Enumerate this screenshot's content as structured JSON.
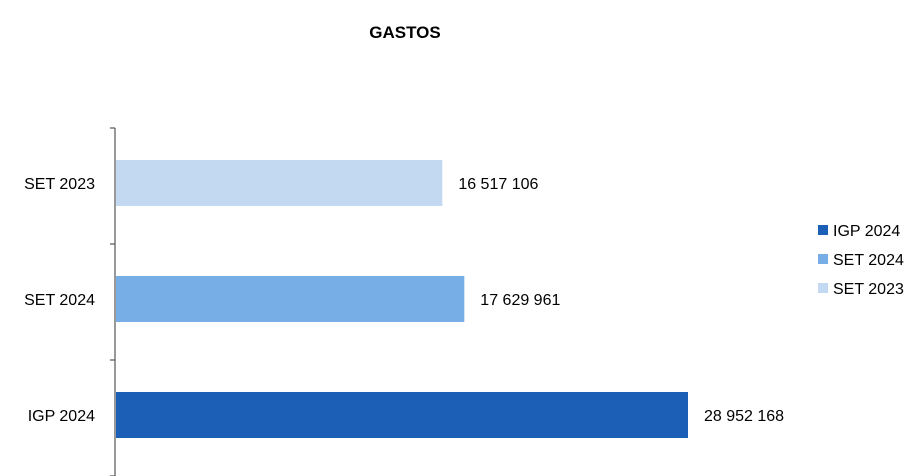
{
  "chart_data": {
    "type": "bar",
    "orientation": "horizontal",
    "title": "GASTOS",
    "xlabel": "",
    "ylabel": "",
    "xlim": [
      0,
      28952168
    ],
    "grid": false,
    "legend_position": "right",
    "categories": [
      "SET 2023",
      "SET 2024",
      "IGP  2024"
    ],
    "values": [
      16517106,
      17629961,
      28952168
    ],
    "value_labels": [
      "16 517 106",
      "17 629 961",
      "28 952 168"
    ],
    "bar_colors": [
      "#c3d9f2",
      "#78aee6",
      "#1c5fb6"
    ],
    "legend": [
      {
        "label": "IGP  2024",
        "color": "#1c5fb6"
      },
      {
        "label": "SET 2024",
        "color": "#78aee6"
      },
      {
        "label": "SET 2023",
        "color": "#c3d9f2"
      }
    ]
  }
}
